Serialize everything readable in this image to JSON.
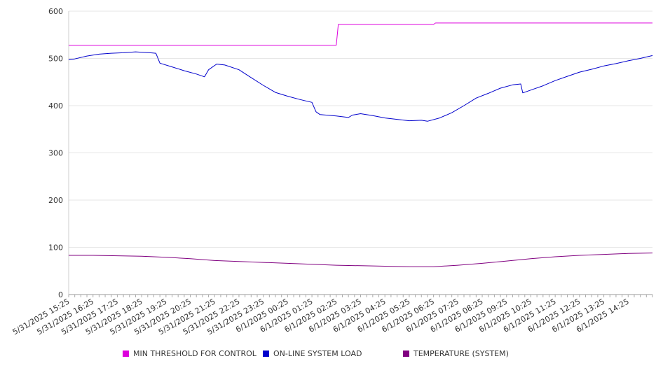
{
  "chart_data": {
    "type": "line",
    "title": "",
    "xlabel": "",
    "ylabel": "",
    "ylim": [
      0,
      600
    ],
    "yticks": [
      0,
      100,
      200,
      300,
      400,
      500,
      600
    ],
    "grid": true,
    "legend_position": "bottom",
    "x_start": "5/31/2025 15:25",
    "x_end": "6/1/2025 15:25",
    "categories": [
      "5/31/2025 15:25",
      "5/31/2025 16:25",
      "5/31/2025 17:25",
      "5/31/2025 18:25",
      "5/31/2025 19:25",
      "5/31/2025 20:25",
      "5/31/2025 21:25",
      "5/31/2025 22:25",
      "5/31/2025 23:25",
      "6/1/2025 00:25",
      "6/1/2025 01:25",
      "6/1/2025 02:25",
      "6/1/2025 03:25",
      "6/1/2025 04:25",
      "6/1/2025 05:25",
      "6/1/2025 06:25",
      "6/1/2025 07:25",
      "6/1/2025 08:25",
      "6/1/2025 09:25",
      "6/1/2025 10:25",
      "6/1/2025 11:25",
      "6/1/2025 12:25",
      "6/1/2025 13:25",
      "6/1/2025 14:25"
    ],
    "series": [
      {
        "name": "MIN THRESHOLD FOR CONTROL",
        "color": "#dd00dd",
        "x": [
          "5/31/2025 15:25",
          "6/1/2025 02:25",
          "6/1/2025 02:30",
          "6/1/2025 06:25",
          "6/1/2025 06:30",
          "6/1/2025 15:25"
        ],
        "y": [
          528,
          528,
          572,
          572,
          575,
          575
        ]
      },
      {
        "name": "ON-LINE SYSTEM LOAD",
        "color": "#0000cc",
        "x": [
          "5/31/2025 15:25",
          "5/31/2025 15:40",
          "5/31/2025 16:10",
          "5/31/2025 16:40",
          "5/31/2025 17:10",
          "5/31/2025 17:40",
          "5/31/2025 18:10",
          "5/31/2025 18:45",
          "5/31/2025 19:00",
          "5/31/2025 19:10",
          "5/31/2025 19:40",
          "5/31/2025 20:10",
          "5/31/2025 20:40",
          "5/31/2025 21:00",
          "5/31/2025 21:10",
          "5/31/2025 21:30",
          "5/31/2025 21:50",
          "5/31/2025 22:25",
          "5/31/2025 22:50",
          "5/31/2025 23:25",
          "5/31/2025 23:55",
          "6/1/2025 00:25",
          "6/1/2025 00:55",
          "6/1/2025 01:25",
          "6/1/2025 01:35",
          "6/1/2025 01:45",
          "6/1/2025 02:25",
          "6/1/2025 02:55",
          "6/1/2025 03:05",
          "6/1/2025 03:25",
          "6/1/2025 03:55",
          "6/1/2025 04:25",
          "6/1/2025 04:55",
          "6/1/2025 05:25",
          "6/1/2025 05:55",
          "6/1/2025 06:10",
          "6/1/2025 06:40",
          "6/1/2025 07:10",
          "6/1/2025 07:40",
          "6/1/2025 08:10",
          "6/1/2025 08:40",
          "6/1/2025 09:10",
          "6/1/2025 09:40",
          "6/1/2025 10:00",
          "6/1/2025 10:05",
          "6/1/2025 10:25",
          "6/1/2025 10:55",
          "6/1/2025 11:25",
          "6/1/2025 11:55",
          "6/1/2025 12:25",
          "6/1/2025 12:55",
          "6/1/2025 13:25",
          "6/1/2025 13:55",
          "6/1/2025 14:25",
          "6/1/2025 14:55",
          "6/1/2025 15:25"
        ],
        "y": [
          497,
          499,
          505,
          509,
          511,
          512,
          514,
          512,
          511,
          490,
          482,
          474,
          467,
          461,
          476,
          488,
          486,
          476,
          462,
          443,
          428,
          420,
          413,
          407,
          387,
          381,
          378,
          375,
          380,
          383,
          379,
          374,
          371,
          368,
          369,
          367,
          374,
          385,
          400,
          416,
          426,
          437,
          444,
          446,
          427,
          433,
          442,
          453,
          462,
          471,
          477,
          484,
          489,
          495,
          500,
          506
        ]
      },
      {
        "name": "TEMPERATURE (SYSTEM)",
        "color": "#800080",
        "x": [
          "5/31/2025 15:25",
          "5/31/2025 16:25",
          "5/31/2025 17:25",
          "5/31/2025 18:25",
          "5/31/2025 19:25",
          "5/31/2025 20:25",
          "5/31/2025 21:25",
          "5/31/2025 22:25",
          "5/31/2025 23:25",
          "6/1/2025 00:25",
          "6/1/2025 01:25",
          "6/1/2025 02:25",
          "6/1/2025 03:25",
          "6/1/2025 04:25",
          "6/1/2025 05:25",
          "6/1/2025 06:25",
          "6/1/2025 07:25",
          "6/1/2025 08:25",
          "6/1/2025 09:25",
          "6/1/2025 10:25",
          "6/1/2025 11:25",
          "6/1/2025 12:25",
          "6/1/2025 13:25",
          "6/1/2025 14:25",
          "6/1/2025 15:25"
        ],
        "y": [
          83,
          83,
          82,
          81,
          79,
          76,
          72,
          70,
          68,
          66,
          64,
          62,
          61,
          60,
          59,
          59,
          62,
          66,
          71,
          76,
          80,
          83,
          85,
          87,
          88
        ]
      }
    ]
  }
}
